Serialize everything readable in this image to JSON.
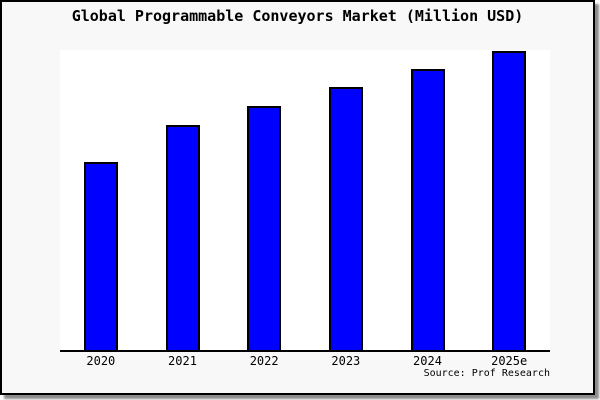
{
  "window": {
    "background": "#f8f8f8",
    "border_color": "#000000",
    "shadow_color": "#737373"
  },
  "header": {
    "title": "Global Programmable Conveyors Market (Million USD)"
  },
  "footer": {
    "source": "Source: Prof Research"
  },
  "chart_data": {
    "type": "bar",
    "title": "Global Programmable Conveyors Market (Million USD)",
    "categories": [
      "2020",
      "2021",
      "2022",
      "2023",
      "2024",
      "2025e"
    ],
    "values": [
      188,
      225,
      244,
      263,
      281,
      299
    ],
    "ylim": [
      0,
      300
    ],
    "value_note": "y-axis has no tick labels in the chart; values are relative bar heights on a 300px-tall plot",
    "xlabel": "",
    "ylabel": "",
    "grid": false,
    "legend": false,
    "bar_color": "#0000ff",
    "bar_border_color": "#000000",
    "plot_background": "#ffffff",
    "axis_color": "#000000",
    "source_note": "Source: Prof Research"
  }
}
